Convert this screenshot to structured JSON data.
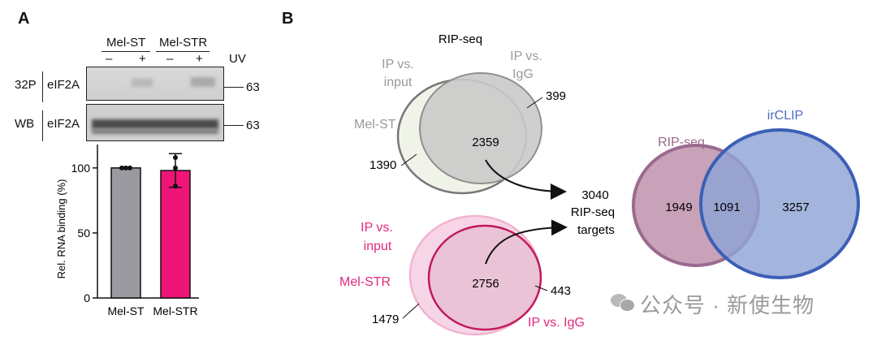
{
  "panel_a": {
    "letter": "A",
    "groups": [
      "Mel-ST",
      "Mel-STR"
    ],
    "uv": [
      "–",
      "+",
      "–",
      "+"
    ],
    "uv_label": "UV",
    "rows": [
      {
        "left": "32P",
        "name": "eIF2A",
        "marker": "63"
      },
      {
        "left": "WB",
        "name": "eIF2A",
        "marker": "63"
      }
    ],
    "chart_data": {
      "type": "bar",
      "categories": [
        "Mel-ST",
        "Mel-STR"
      ],
      "values": [
        100,
        98
      ],
      "error": [
        0,
        13
      ],
      "points": [
        [
          100,
          100,
          100
        ],
        [
          108,
          100,
          86
        ]
      ],
      "ylabel": "Rel. RNA binding (%)",
      "yticks": [
        0,
        50,
        100
      ],
      "ylim": [
        0,
        118
      ],
      "colors": [
        "#9a9aa0",
        "#ee1478"
      ]
    }
  },
  "panel_b": {
    "letter": "B",
    "rip_title": "RIP-seq",
    "venn_st": {
      "ip_input": [
        "IP vs.",
        "input"
      ],
      "ip_igg": [
        "IP vs.",
        "IgG"
      ],
      "sample": "Mel-ST",
      "left_only": "1390",
      "overlap": "2359",
      "right_only": "399"
    },
    "venn_str": {
      "ip_input": [
        "IP vs.",
        "input"
      ],
      "sample": "Mel-STR",
      "ip_igg": "IP vs. IgG",
      "left_only": "1479",
      "overlap": "2756",
      "right_only": "443"
    },
    "targets": [
      "3040",
      "RIP-seq",
      "targets"
    ],
    "venn_clip": {
      "left_label": "RIP-seq",
      "right_label": "irCLIP",
      "left_only": "1949",
      "overlap": "1091",
      "right_only": "3257"
    },
    "colors": {
      "st_ring": "#777777",
      "str_ring": "#c2185b",
      "str_label": "#e0287d",
      "rip_ring": "#9b6a8e",
      "clip_ring": "#3b5fb5",
      "clip_label": "#4b6cc0"
    }
  },
  "watermark": "公众号 · 新使生物"
}
